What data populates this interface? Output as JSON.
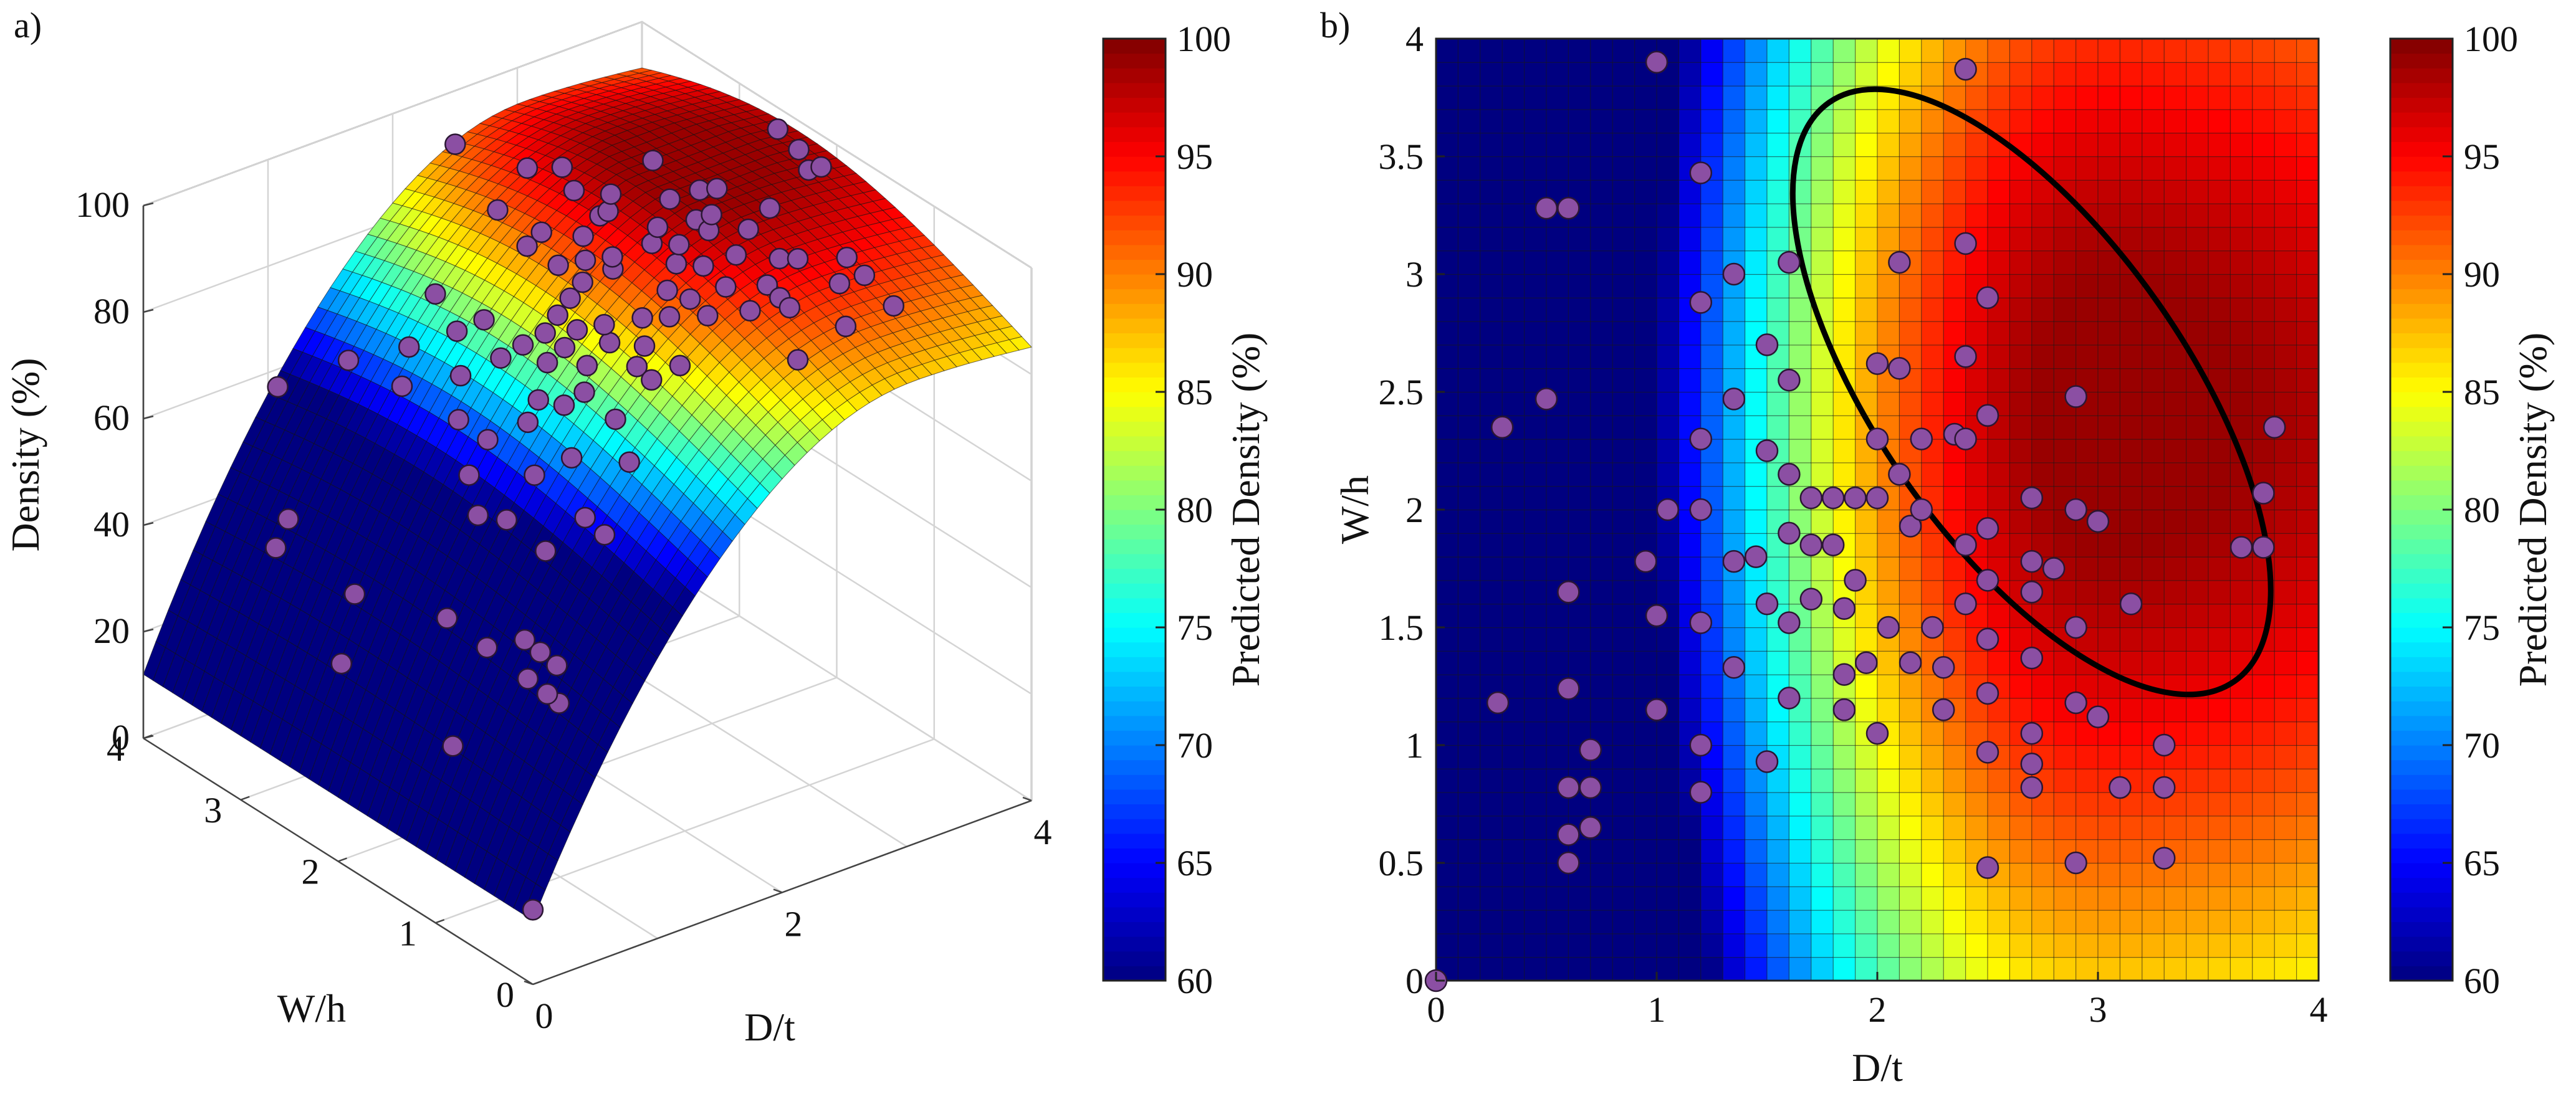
{
  "figure": {
    "panel_a_label": "a)",
    "panel_b_label": "b)"
  },
  "chart_data": [
    {
      "type": "surface3d",
      "panel": "a)",
      "title": "",
      "xlabel": "D/t",
      "ylabel": "W/h",
      "zlabel": "Density (%)",
      "xlim": [
        0,
        4
      ],
      "ylim": [
        0,
        4
      ],
      "zlim": [
        0,
        100
      ],
      "x_ticks": [
        "0",
        "2",
        "4"
      ],
      "y_ticks": [
        "0",
        "1",
        "2",
        "3",
        "4"
      ],
      "z_ticks": [
        "0",
        "20",
        "40",
        "60",
        "80",
        "100"
      ],
      "grid": true,
      "colormap": "jet",
      "surface_model": "Predicted density surface rising from ~15% at D/t=0 to ~97% around D/t≈3, W/h≈2.4",
      "scatter_color": "#8b4fa3",
      "colorbar": {
        "label": "Predicted Density (%)",
        "range": [
          60,
          100
        ],
        "ticks": [
          "60",
          "65",
          "70",
          "75",
          "80",
          "85",
          "90",
          "95",
          "100"
        ]
      }
    },
    {
      "type": "heatmap",
      "panel": "b)",
      "title": "",
      "xlabel": "D/t",
      "ylabel": "W/h",
      "xlim": [
        0,
        4
      ],
      "ylim": [
        0,
        4
      ],
      "x_ticks": [
        "0",
        "1",
        "2",
        "3",
        "4"
      ],
      "y_ticks": [
        "0",
        "0.5",
        "1",
        "1.5",
        "2",
        "2.5",
        "3",
        "3.5",
        "4"
      ],
      "grid_cells": 40,
      "colormap": "jet",
      "optimal_region": {
        "shape": "ellipse",
        "center": [
          2.7,
          2.5
        ],
        "semi_axes": [
          0.7,
          1.5
        ],
        "rotation_deg": -35
      },
      "scatter_color": "#8b4fa3",
      "scatter_points": [
        [
          0.0,
          0.0
        ],
        [
          0.3,
          2.35
        ],
        [
          0.5,
          2.47
        ],
        [
          0.5,
          3.28
        ],
        [
          0.28,
          1.18
        ],
        [
          0.6,
          1.65
        ],
        [
          0.6,
          1.24
        ],
        [
          0.6,
          0.82
        ],
        [
          0.6,
          0.5
        ],
        [
          0.7,
          0.98
        ],
        [
          0.7,
          0.82
        ],
        [
          0.7,
          0.65
        ],
        [
          0.6,
          0.62
        ],
        [
          0.6,
          3.28
        ],
        [
          1.0,
          3.9
        ],
        [
          1.2,
          3.43
        ],
        [
          0.95,
          1.78
        ],
        [
          1.0,
          1.55
        ],
        [
          1.0,
          1.15
        ],
        [
          1.2,
          2.88
        ],
        [
          1.2,
          2.3
        ],
        [
          1.2,
          2.0
        ],
        [
          1.2,
          1.52
        ],
        [
          1.2,
          1.0
        ],
        [
          1.2,
          0.8
        ],
        [
          1.05,
          2.0
        ],
        [
          1.35,
          3.0
        ],
        [
          1.35,
          2.47
        ],
        [
          1.5,
          2.7
        ],
        [
          1.5,
          2.25
        ],
        [
          1.45,
          1.8
        ],
        [
          1.5,
          1.6
        ],
        [
          1.5,
          0.93
        ],
        [
          1.35,
          1.78
        ],
        [
          1.35,
          1.33
        ],
        [
          1.6,
          3.05
        ],
        [
          1.6,
          2.55
        ],
        [
          1.6,
          2.15
        ],
        [
          1.6,
          1.9
        ],
        [
          1.6,
          1.52
        ],
        [
          1.6,
          1.2
        ],
        [
          1.7,
          2.05
        ],
        [
          1.7,
          1.85
        ],
        [
          1.7,
          1.62
        ],
        [
          1.8,
          2.05
        ],
        [
          1.8,
          1.85
        ],
        [
          1.85,
          1.58
        ],
        [
          1.85,
          1.3
        ],
        [
          1.85,
          1.15
        ],
        [
          1.9,
          2.05
        ],
        [
          1.9,
          1.7
        ],
        [
          1.95,
          1.35
        ],
        [
          2.0,
          2.62
        ],
        [
          2.0,
          2.3
        ],
        [
          2.0,
          2.05
        ],
        [
          2.0,
          1.05
        ],
        [
          2.05,
          1.5
        ],
        [
          2.1,
          3.05
        ],
        [
          2.1,
          2.6
        ],
        [
          2.1,
          2.15
        ],
        [
          2.15,
          1.93
        ],
        [
          2.15,
          1.35
        ],
        [
          2.2,
          2.3
        ],
        [
          2.2,
          2.0
        ],
        [
          2.25,
          1.5
        ],
        [
          2.3,
          1.15
        ],
        [
          2.3,
          1.33
        ],
        [
          2.35,
          2.32
        ],
        [
          2.4,
          3.87
        ],
        [
          2.4,
          3.13
        ],
        [
          2.4,
          2.65
        ],
        [
          2.4,
          2.3
        ],
        [
          2.4,
          1.85
        ],
        [
          2.4,
          1.6
        ],
        [
          2.5,
          2.9
        ],
        [
          2.5,
          2.4
        ],
        [
          2.5,
          1.92
        ],
        [
          2.5,
          1.7
        ],
        [
          2.5,
          1.45
        ],
        [
          2.5,
          1.22
        ],
        [
          2.5,
          0.97
        ],
        [
          2.5,
          0.48
        ],
        [
          2.7,
          2.05
        ],
        [
          2.7,
          1.78
        ],
        [
          2.7,
          1.65
        ],
        [
          2.7,
          1.37
        ],
        [
          2.7,
          1.05
        ],
        [
          2.7,
          0.92
        ],
        [
          2.7,
          0.82
        ],
        [
          2.8,
          1.75
        ],
        [
          2.9,
          2.48
        ],
        [
          2.9,
          2.0
        ],
        [
          2.9,
          1.5
        ],
        [
          2.9,
          1.18
        ],
        [
          2.9,
          0.5
        ],
        [
          3.0,
          1.95
        ],
        [
          3.0,
          1.12
        ],
        [
          3.1,
          0.82
        ],
        [
          3.15,
          1.6
        ],
        [
          3.3,
          1.0
        ],
        [
          3.3,
          0.82
        ],
        [
          3.3,
          0.52
        ],
        [
          3.65,
          1.84
        ],
        [
          3.75,
          1.84
        ],
        [
          3.75,
          2.07
        ],
        [
          3.8,
          2.35
        ]
      ],
      "colorbar": {
        "label": "Predicted Density (%)",
        "range": [
          60,
          100
        ],
        "ticks": [
          "60",
          "65",
          "70",
          "75",
          "80",
          "85",
          "90",
          "95",
          "100"
        ]
      }
    }
  ]
}
